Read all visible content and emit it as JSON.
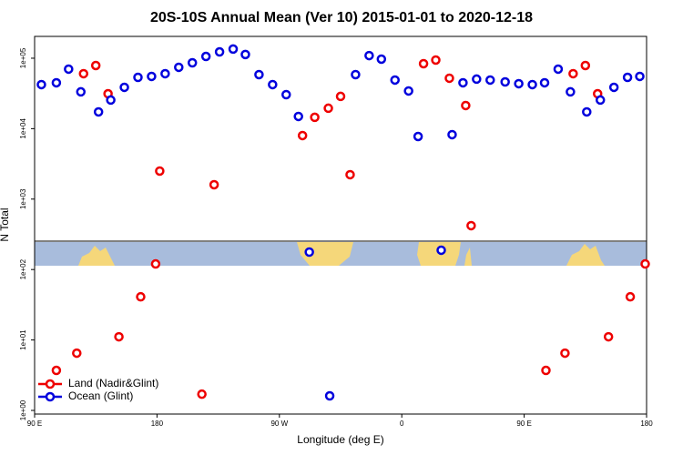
{
  "chart_data": {
    "type": "scatter",
    "title": "20S-10S Annual Mean (Ver 10)   2015-01-01 to 2020-12-18",
    "x_label": "Longitude (deg E)",
    "y_label": "N Total",
    "xlim": [
      90,
      540
    ],
    "xticks": [
      {
        "value": 90,
        "label": "90 E"
      },
      180,
      {
        "value": 270,
        "label": "90 W"
      },
      {
        "value": 360,
        "label": "0"
      },
      {
        "value": 450,
        "label": "90 E"
      },
      {
        "value": 540,
        "label": "180"
      }
    ],
    "ylim": [
      0.888,
      204000
    ],
    "log_y": true,
    "yticks": [
      {
        "value": 1,
        "label": "1e+00"
      },
      {
        "value": 10,
        "label": "1e+01"
      },
      {
        "value": 100,
        "label": "1e+02"
      },
      {
        "value": 1000,
        "label": "1e+03"
      },
      {
        "value": 10000,
        "label": "1e+04"
      },
      {
        "value": 100000,
        "label": "1e+05"
      }
    ],
    "legend": "bottom-left",
    "series": [
      {
        "name": "Land (Nadir&Glint)",
        "color": "#ee0000",
        "x": [
          106,
          121,
          126,
          135,
          144,
          152,
          168,
          179,
          182,
          213,
          222,
          287,
          296,
          306,
          315,
          322,
          376,
          385,
          395,
          407,
          411,
          466,
          480,
          486,
          495,
          504,
          512,
          528,
          539
        ],
        "values": [
          3.7,
          6.5,
          60300,
          78800,
          31300,
          11.1,
          41,
          120,
          2500,
          1.7,
          1600,
          7980,
          14500,
          19500,
          28700,
          2220,
          83600,
          94200,
          52000,
          21300,
          420,
          3.7,
          6.5,
          60300,
          78800,
          31300,
          11.1,
          41,
          120
        ]
      },
      {
        "name": "Ocean (Glint)",
        "color": "#0000dd",
        "x": [
          95,
          106,
          115,
          124,
          137,
          146,
          156,
          166,
          176,
          186,
          196,
          206,
          216,
          226,
          236,
          245,
          255,
          265,
          275,
          284,
          292,
          307,
          326,
          336,
          345,
          355,
          365,
          372,
          389,
          397,
          405,
          415,
          425,
          436,
          446,
          456,
          465,
          475,
          484,
          496,
          506,
          516,
          526,
          535
        ],
        "values": [
          42200,
          44800,
          70000,
          33300,
          17300,
          25500,
          38600,
          53500,
          55200,
          60300,
          74300,
          86100,
          106000,
          123000,
          135000,
          113000,
          58500,
          42200,
          30400,
          14900,
          177,
          1.61,
          58500,
          109000,
          97000,
          49000,
          34300,
          7740,
          188,
          8220,
          44800,
          50500,
          49000,
          46100,
          43500,
          42200,
          44800,
          70000,
          33300,
          17300,
          25500,
          38600,
          53500,
          55200
        ]
      }
    ]
  }
}
